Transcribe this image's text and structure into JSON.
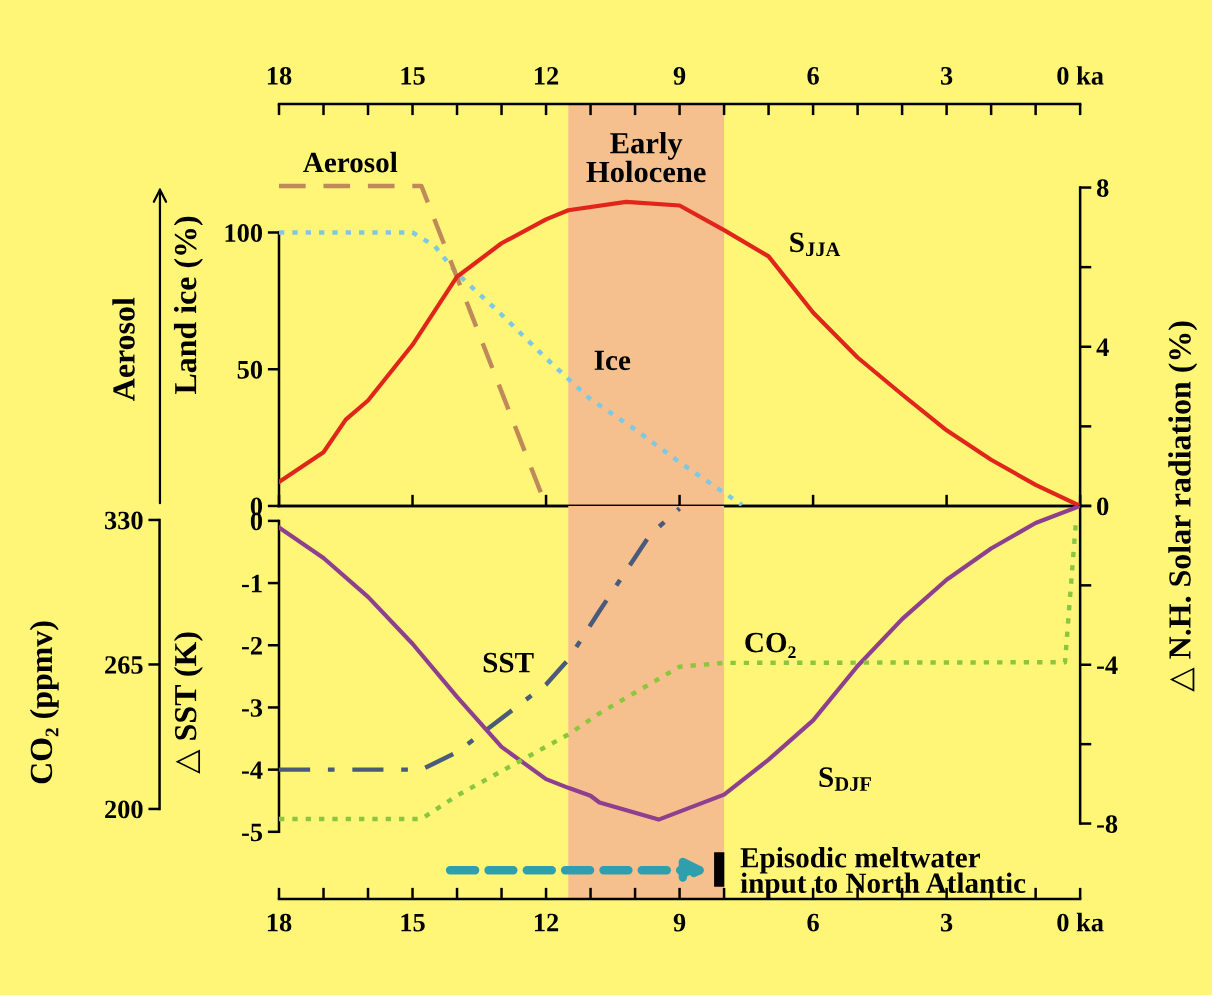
{
  "chart_data": [
    {
      "type": "line",
      "xlim": [
        18,
        0
      ],
      "xticks": [
        18,
        {
          "value": 17,
          "label": null
        },
        {
          "value": 16,
          "label": null
        },
        15,
        {
          "value": 14,
          "label": null
        },
        {
          "value": 13,
          "label": null
        },
        12,
        {
          "value": 11,
          "label": null
        },
        {
          "value": 10,
          "label": null
        },
        9,
        {
          "value": 8,
          "label": null
        },
        {
          "value": 7,
          "label": null
        },
        6,
        {
          "value": 5,
          "label": null
        },
        {
          "value": 4,
          "label": null
        },
        3,
        {
          "value": 2,
          "label": null
        },
        {
          "value": 1,
          "label": null
        },
        {
          "value": 0,
          "label": "0 ka"
        }
      ],
      "ylabel": "Land ice (%)",
      "ylim": [
        0,
        147
      ],
      "yticks": [
        0,
        50,
        100
      ],
      "y2label": "△ N.H. Solar radiation (%)",
      "y2lim": [
        0,
        10.1
      ],
      "y2ticks": [
        0,
        {
          "value": 2,
          "label": null
        },
        4,
        {
          "value": 6,
          "label": null
        },
        8
      ],
      "y3label": "Aerosol",
      "bands": [
        {
          "axis": "x",
          "from": 11.5,
          "to": 8,
          "label": "Early\nHolocene",
          "color": "#f5c08e"
        }
      ],
      "series": [
        {
          "name": "S$_{JJA}$",
          "color": "#e0261b",
          "axis": "y2",
          "line_style": "solid",
          "x": [
            18,
            17,
            16.5,
            16,
            15,
            14,
            13,
            12,
            11.5,
            10.2,
            9,
            8,
            7,
            6,
            5,
            4,
            3,
            2,
            1,
            0
          ],
          "values": [
            0.6,
            1.35,
            2.17,
            2.65,
            4.05,
            5.76,
            6.6,
            7.2,
            7.43,
            7.64,
            7.55,
            6.93,
            6.27,
            4.86,
            3.73,
            2.8,
            1.9,
            1.16,
            0.53,
            0
          ]
        },
        {
          "name": "Ice",
          "color": "#7ec8e3",
          "axis": "y",
          "line_style": "dotted",
          "x": [
            18,
            15,
            14.5,
            14,
            13,
            12,
            11,
            10,
            9,
            8,
            7.6
          ],
          "values": [
            100,
            100,
            95,
            85,
            70,
            54,
            39,
            28,
            16,
            4.8,
            0.4
          ]
        },
        {
          "name": "Aerosol",
          "color": "#c0895a",
          "axis": "y",
          "line_style": "dashed",
          "x": [
            18,
            14.8,
            12
          ],
          "values": [
            117,
            117,
            0
          ]
        }
      ]
    },
    {
      "type": "line",
      "xlim": [
        18,
        0
      ],
      "xticks": [
        18,
        {
          "value": 17,
          "label": null
        },
        {
          "value": 16,
          "label": null
        },
        15,
        {
          "value": 14,
          "label": null
        },
        {
          "value": 13,
          "label": null
        },
        12,
        {
          "value": 11,
          "label": null
        },
        {
          "value": 10,
          "label": null
        },
        9,
        {
          "value": 8,
          "label": null
        },
        {
          "value": 7,
          "label": null
        },
        6,
        {
          "value": 5,
          "label": null
        },
        {
          "value": 4,
          "label": null
        },
        3,
        {
          "value": 2,
          "label": null
        },
        {
          "value": 1,
          "label": null
        },
        {
          "value": 0,
          "label": "0 ka"
        }
      ],
      "ylabel": "△ SST (K)",
      "ylim": [
        -6.08,
        0.24
      ],
      "yticks": [
        -5,
        -4,
        -3,
        -2,
        -1,
        0
      ],
      "y2lim": [
        -9.9,
        0
      ],
      "y2ticks": [
        {
          "value": -8,
          "label": "-8"
        },
        {
          "value": -6,
          "label": null
        },
        {
          "value": -4,
          "label": "-4"
        },
        {
          "value": -2,
          "label": null
        },
        {
          "value": 0,
          "label": null
        }
      ],
      "y3label": "CO₂ (ppmv)",
      "y3lim": [
        159.5,
        336.3
      ],
      "y3ticks": [
        200,
        265,
        330
      ],
      "bands": [
        {
          "axis": "x",
          "from": 11.5,
          "to": 8,
          "color": "#f5c08e"
        }
      ],
      "annotations": [
        "Episodic meltwater\ninput to North Atlantic"
      ],
      "series": [
        {
          "name": "SST",
          "color": "#4a5a7a",
          "axis": "y",
          "line_style": "dashdot",
          "x": [
            18,
            14.8,
            14,
            12,
            11.5,
            10.8,
            9.66,
            9
          ],
          "values": [
            -4,
            -4,
            -3.72,
            -2.63,
            -2.23,
            -1.45,
            -0.22,
            0.2
          ]
        },
        {
          "name": "CO₂",
          "color": "#8cc63f",
          "axis": "y3",
          "line_style": "dotted",
          "x": [
            18,
            14.8,
            14,
            12,
            11.5,
            10.8,
            9,
            8,
            0.34,
            0.1
          ],
          "values": [
            195.5,
            195.5,
            206,
            228,
            233.5,
            243,
            264,
            265.7,
            266,
            328
          ]
        },
        {
          "name": "S$_{DJF}$",
          "color": "#8e3f8e",
          "axis": "y2",
          "line_style": "solid",
          "x": [
            18,
            17,
            16,
            15,
            14,
            13,
            12,
            11.5,
            11,
            10.8,
            9.47,
            8,
            7,
            6,
            5,
            4,
            3,
            2,
            1,
            0
          ],
          "values": [
            -0.54,
            -1.31,
            -2.29,
            -3.47,
            -4.81,
            -6.07,
            -6.88,
            -7.1,
            -7.3,
            -7.47,
            -7.9,
            -7.27,
            -6.39,
            -5.4,
            -4.03,
            -2.85,
            -1.86,
            -1.07,
            -0.43,
            0
          ]
        }
      ]
    }
  ]
}
